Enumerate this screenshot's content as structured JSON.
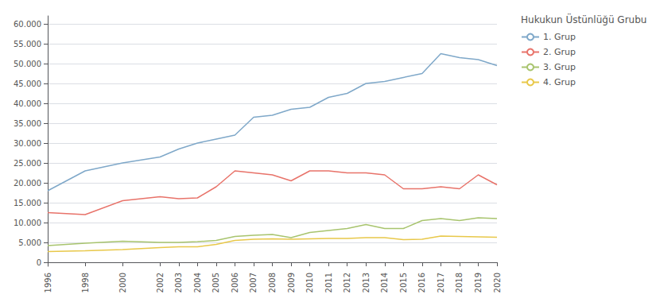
{
  "chart_data": {
    "type": "line",
    "legend_title": "Hukukun Üstünlüğü Grubu",
    "x": [
      1996,
      1998,
      2000,
      2002,
      2003,
      2004,
      2005,
      2006,
      2007,
      2008,
      2009,
      2010,
      2011,
      2012,
      2013,
      2014,
      2015,
      2016,
      2017,
      2018,
      2019,
      2020
    ],
    "xlim": [
      1996,
      2020
    ],
    "xticks": [
      1996,
      1998,
      2000,
      2002,
      2003,
      2004,
      2005,
      2006,
      2007,
      2008,
      2009,
      2010,
      2011,
      2012,
      2013,
      2014,
      2015,
      2016,
      2017,
      2018,
      2019,
      2020
    ],
    "ylim": [
      -1000,
      62000
    ],
    "yticks": [
      0,
      {
        "value": 5000,
        "label": "5.000"
      },
      {
        "value": 10000,
        "label": "10.000"
      },
      {
        "value": 15000,
        "label": "15.000"
      },
      {
        "value": 20000,
        "label": "20.000"
      },
      {
        "value": 25000,
        "label": "25.000"
      },
      {
        "value": 30000,
        "label": "30.000"
      },
      {
        "value": 35000,
        "label": "35.000"
      },
      {
        "value": 40000,
        "label": "40.000"
      },
      {
        "value": 45000,
        "label": "45.000"
      },
      {
        "value": 50000,
        "label": "50.000"
      },
      {
        "value": 55000,
        "label": "55.000"
      },
      {
        "value": 60000,
        "label": "60.000"
      }
    ],
    "grid": "y",
    "legend": "upper right",
    "series": [
      {
        "name": "1. Grup",
        "color": "#7fa8c9",
        "values": [
          18000,
          23000,
          25000,
          26500,
          28500,
          30000,
          31000,
          32000,
          36500,
          37000,
          38500,
          39000,
          41500,
          42500,
          45000,
          45500,
          46500,
          47500,
          52500,
          51500,
          51000,
          49500
        ]
      },
      {
        "name": "2. Grup",
        "color": "#e8736a",
        "values": [
          12500,
          12000,
          15500,
          16500,
          16000,
          16200,
          19000,
          23000,
          22500,
          22000,
          20500,
          23000,
          23000,
          22500,
          22500,
          22000,
          18500,
          18500,
          19000,
          18500,
          22000,
          19500
        ]
      },
      {
        "name": "3. Grup",
        "color": "#a8c46e",
        "values": [
          4200,
          4800,
          5300,
          5000,
          5000,
          5200,
          5500,
          6500,
          6800,
          7000,
          6200,
          7500,
          8000,
          8500,
          9500,
          8500,
          8500,
          10500,
          11000,
          10500,
          11200,
          11000
        ]
      },
      {
        "name": "4. Grup",
        "color": "#e8c84a",
        "values": [
          2700,
          2900,
          3200,
          3700,
          3900,
          3900,
          4500,
          5500,
          5800,
          5900,
          5800,
          5900,
          6000,
          6000,
          6200,
          6200,
          5700,
          5800,
          6600,
          6500,
          6400,
          6300
        ]
      }
    ]
  }
}
